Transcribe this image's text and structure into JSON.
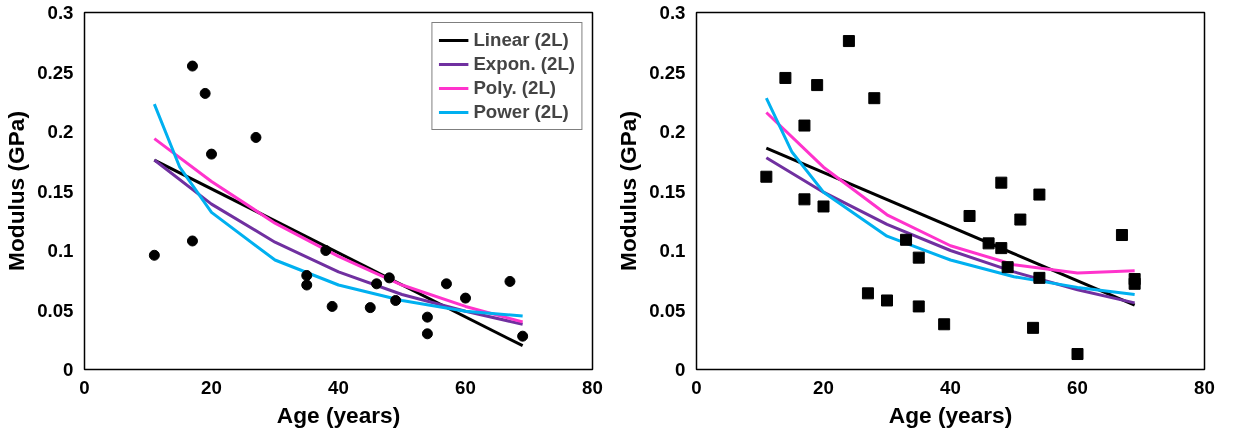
{
  "chart_data": [
    {
      "type": "scatter",
      "xlabel": "Age (years)",
      "ylabel": "Modulus (GPa)",
      "xlim": [
        0,
        80
      ],
      "ylim": [
        0,
        0.3
      ],
      "xticks": [
        0,
        20,
        40,
        60,
        80
      ],
      "yticks": [
        0,
        0.05,
        0.1,
        0.15,
        0.2,
        0.25,
        0.3
      ],
      "grid": false,
      "legend": "top right",
      "series": [
        {
          "marker": "circle",
          "color": "#000000",
          "x": [
            11,
            17,
            19,
            20,
            17,
            27,
            35,
            35,
            38,
            39,
            45,
            46,
            48,
            49,
            54,
            54,
            57,
            60,
            67,
            69
          ],
          "values": [
            0.096,
            0.255,
            0.232,
            0.181,
            0.108,
            0.195,
            0.079,
            0.071,
            0.1,
            0.053,
            0.052,
            0.072,
            0.077,
            0.058,
            0.044,
            0.03,
            0.072,
            0.06,
            0.074,
            0.028
          ]
        },
        {
          "type": "line",
          "name": "Linear (2L)",
          "color": "#000000",
          "x": [
            11,
            69
          ],
          "values": [
            0.176,
            0.02
          ]
        },
        {
          "type": "line",
          "name": "Expon. (2L)",
          "color": "#7030a0",
          "x": [
            11,
            20,
            30,
            40,
            50,
            60,
            69
          ],
          "values": [
            0.176,
            0.139,
            0.107,
            0.082,
            0.063,
            0.049,
            0.038
          ]
        },
        {
          "type": "line",
          "name": "Poly. (2L)",
          "color": "#ff33cc",
          "x": [
            11,
            20,
            30,
            40,
            50,
            60,
            69
          ],
          "values": [
            0.194,
            0.158,
            0.123,
            0.095,
            0.071,
            0.053,
            0.04
          ]
        },
        {
          "type": "line",
          "name": "Power (2L)",
          "color": "#00b0f0",
          "x": [
            11,
            15,
            20,
            30,
            40,
            50,
            60,
            69
          ],
          "values": [
            0.223,
            0.17,
            0.132,
            0.092,
            0.071,
            0.058,
            0.049,
            0.045
          ]
        }
      ]
    },
    {
      "type": "scatter",
      "xlabel": "Age (years)",
      "ylabel": "Modulus (GPa)",
      "xlim": [
        0,
        80
      ],
      "ylim": [
        0,
        0.3
      ],
      "xticks": [
        0,
        20,
        40,
        60,
        80
      ],
      "yticks": [
        0,
        0.05,
        0.1,
        0.15,
        0.2,
        0.25,
        0.3
      ],
      "grid": false,
      "series": [
        {
          "marker": "square",
          "color": "#000000",
          "x": [
            11,
            14,
            17,
            17,
            19,
            20,
            24,
            28,
            27,
            30,
            33,
            35,
            35,
            39,
            43,
            46,
            48,
            48,
            49,
            51,
            53,
            54,
            54,
            60,
            67,
            69,
            69
          ],
          "values": [
            0.162,
            0.245,
            0.205,
            0.143,
            0.239,
            0.137,
            0.276,
            0.228,
            0.064,
            0.058,
            0.109,
            0.094,
            0.053,
            0.038,
            0.129,
            0.106,
            0.157,
            0.102,
            0.086,
            0.126,
            0.035,
            0.147,
            0.077,
            0.013,
            0.113,
            0.076,
            0.072
          ]
        },
        {
          "type": "line",
          "color": "#000000",
          "x": [
            11,
            69
          ],
          "values": [
            0.186,
            0.054
          ]
        },
        {
          "type": "line",
          "color": "#7030a0",
          "x": [
            11,
            20,
            30,
            40,
            50,
            60,
            69
          ],
          "values": [
            0.178,
            0.149,
            0.122,
            0.1,
            0.082,
            0.067,
            0.056
          ]
        },
        {
          "type": "line",
          "color": "#ff33cc",
          "x": [
            11,
            20,
            30,
            40,
            50,
            60,
            69
          ],
          "values": [
            0.216,
            0.17,
            0.13,
            0.104,
            0.088,
            0.081,
            0.083
          ]
        },
        {
          "type": "line",
          "color": "#00b0f0",
          "x": [
            11,
            15,
            20,
            30,
            40,
            50,
            60,
            69
          ],
          "values": [
            0.228,
            0.183,
            0.149,
            0.112,
            0.092,
            0.078,
            0.069,
            0.063
          ]
        }
      ]
    }
  ]
}
